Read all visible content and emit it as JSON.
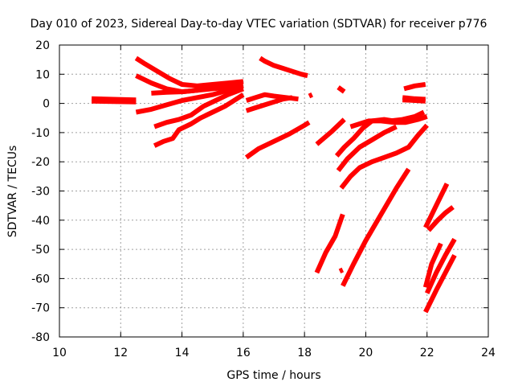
{
  "chart_data": {
    "type": "scatter",
    "title": "Day 010 of 2023, Sidereal Day-to-day VTEC variation (SDTVAR) for receiver p776",
    "xlabel": "GPS time / hours",
    "ylabel": "SDTVAR / TECUs",
    "xlim": [
      10,
      24
    ],
    "ylim": [
      -80,
      20
    ],
    "xticks": [
      10,
      12,
      14,
      16,
      18,
      20,
      22,
      24
    ],
    "yticks": [
      -80,
      -70,
      -60,
      -50,
      -40,
      -30,
      -20,
      -10,
      0,
      10,
      20
    ],
    "grid": true,
    "marker": "plus",
    "color": "#ff0000",
    "tracks": [
      {
        "x": [
          11.05,
          12.5
        ],
        "y": [
          0.8,
          0.5
        ]
      },
      {
        "x": [
          11.05,
          12.5
        ],
        "y": [
          1.6,
          1.2
        ]
      },
      {
        "x": [
          12.5,
          12.8,
          13.2,
          13.6,
          14.0,
          14.5,
          15.0,
          15.5,
          16.0
        ],
        "y": [
          15.5,
          13.5,
          11.0,
          8.5,
          6.5,
          6.0,
          6.5,
          7.0,
          7.5
        ]
      },
      {
        "x": [
          12.5,
          13.0,
          13.5,
          14.0,
          14.5,
          15.0,
          15.5,
          16.0
        ],
        "y": [
          9.5,
          7.0,
          5.0,
          4.0,
          4.5,
          5.5,
          6.5,
          7.5
        ]
      },
      {
        "x": [
          13.0,
          13.5,
          14.0,
          14.5,
          15.0,
          15.5,
          16.0
        ],
        "y": [
          3.5,
          3.8,
          4.0,
          4.5,
          5.0,
          5.5,
          6.0
        ]
      },
      {
        "x": [
          12.5,
          13.0,
          13.5,
          14.0,
          14.5,
          15.0,
          15.5,
          16.0
        ],
        "y": [
          -3.0,
          -2.0,
          -0.5,
          1.0,
          2.0,
          3.0,
          4.5,
          6.0
        ]
      },
      {
        "x": [
          13.1,
          13.5,
          13.9,
          14.3,
          14.7,
          15.1,
          15.5,
          16.0
        ],
        "y": [
          -8.0,
          -6.5,
          -5.5,
          -4.0,
          -1.0,
          1.0,
          3.0,
          5.0
        ]
      },
      {
        "x": [
          13.1,
          13.4,
          13.7,
          13.9,
          14.3,
          14.6,
          15.0,
          15.4,
          15.7,
          16.0
        ],
        "y": [
          -14.5,
          -13.0,
          -12.0,
          -9.0,
          -7.0,
          -5.0,
          -3.0,
          -1.0,
          1.0,
          3.0
        ]
      },
      {
        "x": [
          16.55,
          16.7,
          17.0,
          17.3,
          17.6,
          17.9,
          18.1
        ],
        "y": [
          15.5,
          14.5,
          13.0,
          12.0,
          11.0,
          10.0,
          9.5
        ]
      },
      {
        "x": [
          16.1,
          16.4,
          16.7,
          17.0,
          17.4,
          17.8
        ],
        "y": [
          1.0,
          2.0,
          3.0,
          2.5,
          2.0,
          1.5
        ]
      },
      {
        "x": [
          16.1,
          16.4,
          16.7,
          17.0,
          17.3,
          17.6
        ],
        "y": [
          -2.5,
          -1.5,
          -0.5,
          0.5,
          1.5,
          2.0
        ]
      },
      {
        "x": [
          16.1,
          16.5,
          17.0,
          17.5,
          18.0,
          18.15
        ],
        "y": [
          -18.5,
          -15.5,
          -13.0,
          -10.5,
          -7.5,
          -6.5
        ]
      },
      {
        "x": [
          18.15,
          18.25
        ],
        "y": [
          2.5,
          3.0
        ]
      },
      {
        "x": [
          18.4,
          18.9,
          19.3
        ],
        "y": [
          -14.0,
          -9.5,
          -5.5
        ]
      },
      {
        "x": [
          19.1,
          19.3
        ],
        "y": [
          5.5,
          4.0
        ]
      },
      {
        "x": [
          19.05,
          19.3,
          19.6,
          19.9,
          20.2,
          20.6,
          20.9,
          21.3
        ],
        "y": [
          -18.0,
          -15.0,
          -12.0,
          -8.5,
          -6.0,
          -5.5,
          -6.0,
          -6.5
        ]
      },
      {
        "x": [
          19.5,
          19.8,
          20.1,
          20.5,
          20.9,
          21.3,
          21.7,
          22.0
        ],
        "y": [
          -8.0,
          -7.0,
          -6.0,
          -6.0,
          -6.5,
          -6.5,
          -5.5,
          -4.5
        ]
      },
      {
        "x": [
          20.8,
          21.2,
          21.6,
          21.9
        ],
        "y": [
          -6.0,
          -5.5,
          -4.5,
          -3.0
        ]
      },
      {
        "x": [
          19.2,
          19.5,
          19.8,
          20.2,
          20.6,
          21.0,
          21.4,
          21.7,
          22.0
        ],
        "y": [
          -29.0,
          -25.0,
          -22.0,
          -20.0,
          -18.5,
          -17.0,
          -15.0,
          -11.0,
          -7.5
        ]
      },
      {
        "x": [
          19.1,
          19.4,
          19.8,
          20.2,
          20.6,
          21.0
        ],
        "y": [
          -23.0,
          -19.0,
          -15.0,
          -12.5,
          -10.0,
          -8.0
        ]
      },
      {
        "x": [
          18.4,
          18.7,
          19.0,
          19.25
        ],
        "y": [
          -58.0,
          -51.0,
          -45.5,
          -38.0
        ]
      },
      {
        "x": [
          19.15,
          19.25
        ],
        "y": [
          -57.5,
          -57.0
        ]
      },
      {
        "x": [
          19.25,
          19.6,
          20.0,
          20.5,
          21.0,
          21.4
        ],
        "y": [
          -62.5,
          -55.0,
          -47.0,
          -38.0,
          -29.0,
          -22.5
        ]
      },
      {
        "x": [
          21.25,
          21.6,
          21.95
        ],
        "y": [
          5.0,
          6.0,
          6.5
        ]
      },
      {
        "x": [
          21.2,
          21.6,
          21.95
        ],
        "y": [
          2.0,
          1.6,
          1.4
        ]
      },
      {
        "x": [
          21.2,
          21.6,
          21.95
        ],
        "y": [
          1.2,
          1.0,
          0.8
        ]
      },
      {
        "x": [
          21.95,
          22.25,
          22.65
        ],
        "y": [
          -42.5,
          -36.0,
          -27.5
        ]
      },
      {
        "x": [
          21.95,
          22.15,
          22.45
        ],
        "y": [
          -63.0,
          -55.0,
          -48.0
        ]
      },
      {
        "x": [
          22.05,
          22.35,
          22.6,
          22.85
        ],
        "y": [
          -43.5,
          -40.0,
          -37.5,
          -35.5
        ]
      },
      {
        "x": [
          22.0,
          22.3,
          22.6,
          22.9
        ],
        "y": [
          -65.0,
          -58.0,
          -52.0,
          -46.5
        ]
      },
      {
        "x": [
          21.95,
          22.3,
          22.65,
          22.9
        ],
        "y": [
          -71.5,
          -64.0,
          -57.0,
          -52.0
        ]
      }
    ]
  }
}
